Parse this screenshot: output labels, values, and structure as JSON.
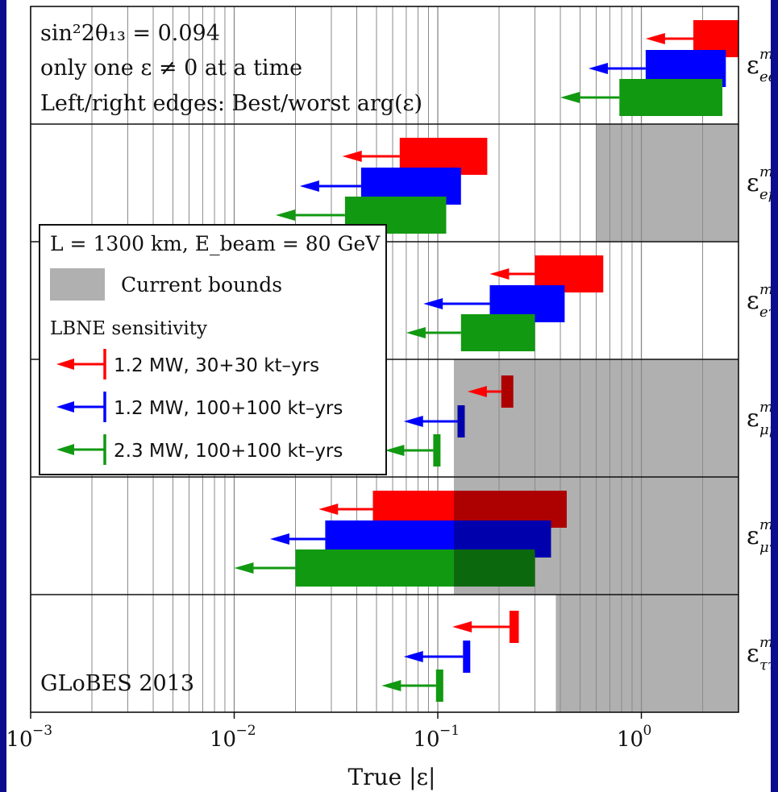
{
  "chart_data": {
    "type": "bar",
    "xscale": "log",
    "xlim": [
      0.001,
      3.0
    ],
    "xlabel": "True |ε|",
    "xticks": [
      {
        "value": 0.001,
        "base": "10",
        "exp": "−3"
      },
      {
        "value": 0.01,
        "base": "10",
        "exp": "−2"
      },
      {
        "value": 0.1,
        "base": "10",
        "exp": "−1"
      },
      {
        "value": 1.0,
        "base": "10",
        "exp": "0"
      }
    ],
    "grid": true,
    "annotations": {
      "theta_label": "sin²2θ₁₃ = 0.094",
      "one_at_a_time": "only one ε ≠ 0 at a time",
      "edges_note": "Left/right edges: Best/worst arg(ε)",
      "credit": "GLoBES 2013"
    },
    "legend": {
      "placement": "center-left",
      "title": "L = 1300 km, E_beam = 80 GeV",
      "bounds_label": "Current bounds",
      "sensitivity_header": "LBNE sensitivity",
      "entries": [
        {
          "label": "1.2 MW, 30+30 kt–yrs",
          "color": "#ff0000"
        },
        {
          "label": "1.2 MW, 100+100 kt–yrs",
          "color": "#0000ff"
        },
        {
          "label": "2.3 MW, 100+100 kt–yrs",
          "color": "#119911"
        }
      ]
    },
    "colors": {
      "red": "#ff0000",
      "blue": "#0000ff",
      "green": "#119911",
      "bounds": "#b0b0b0"
    },
    "series_colors": [
      "#ff0000",
      "#0000ff",
      "#119911"
    ],
    "panels": [
      {
        "symbol": "ε",
        "sup": "m",
        "sub": "ee",
        "bound": null,
        "bars": [
          {
            "best": 1.8,
            "worst": 3.0,
            "arrow_to": 1.05
          },
          {
            "best": 1.05,
            "worst": 2.6,
            "arrow_to": 0.55
          },
          {
            "best": 0.78,
            "worst": 2.5,
            "arrow_to": 0.4
          }
        ]
      },
      {
        "symbol": "ε",
        "sup": "m",
        "sub": "eμ",
        "bound": 0.6,
        "bars": [
          {
            "best": 0.065,
            "worst": 0.175,
            "arrow_to": 0.034
          },
          {
            "best": 0.042,
            "worst": 0.13,
            "arrow_to": 0.021
          },
          {
            "best": 0.035,
            "worst": 0.11,
            "arrow_to": 0.016
          }
        ]
      },
      {
        "symbol": "ε",
        "sup": "m",
        "sub": "eτ",
        "bound": null,
        "bars": [
          {
            "best": 0.3,
            "worst": 0.65,
            "arrow_to": 0.18
          },
          {
            "best": 0.18,
            "worst": 0.42,
            "arrow_to": 0.085
          },
          {
            "best": 0.13,
            "worst": 0.3,
            "arrow_to": 0.07
          }
        ]
      },
      {
        "symbol": "ε",
        "sup": "m",
        "sub": "μμ",
        "bound": 0.12,
        "bars": [
          {
            "best": 0.205,
            "worst": 0.235,
            "arrow_to": 0.14
          },
          {
            "best": 0.125,
            "worst": 0.135,
            "arrow_to": 0.068
          },
          {
            "best": 0.095,
            "worst": 0.103,
            "arrow_to": 0.055
          }
        ]
      },
      {
        "symbol": "ε",
        "sup": "m",
        "sub": "μτ",
        "bound": 0.12,
        "bars": [
          {
            "best": 0.048,
            "worst": 0.43,
            "arrow_to": 0.026
          },
          {
            "best": 0.028,
            "worst": 0.36,
            "arrow_to": 0.015
          },
          {
            "best": 0.02,
            "worst": 0.3,
            "arrow_to": 0.01
          }
        ]
      },
      {
        "symbol": "ε",
        "sup": "m",
        "sub": "ττ",
        "bound": 0.38,
        "bars": [
          {
            "best": 0.225,
            "worst": 0.25,
            "arrow_to": 0.118
          },
          {
            "best": 0.133,
            "worst": 0.142,
            "arrow_to": 0.068
          },
          {
            "best": 0.098,
            "worst": 0.104,
            "arrow_to": 0.053
          }
        ]
      }
    ]
  }
}
